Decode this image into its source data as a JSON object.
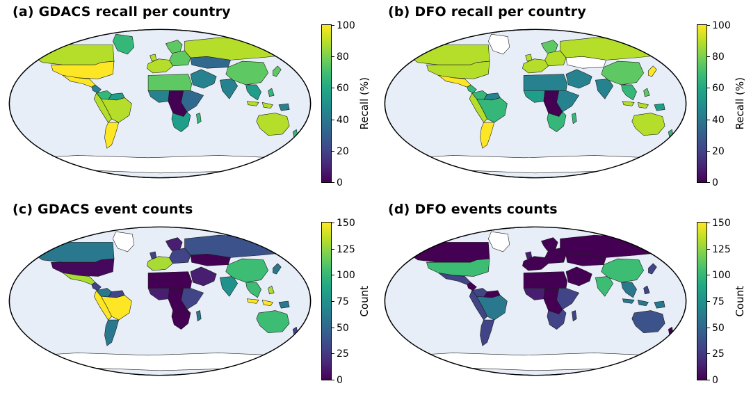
{
  "figure": {
    "panels": {
      "a": {
        "title": "(a)  GDACS recall per country",
        "colorbar": {
          "label": "Recall (%)",
          "min": 0,
          "max": 100,
          "ticks": [
            0,
            20,
            40,
            60,
            80,
            100
          ]
        },
        "region_colors": {
          "greenland": "#35b779",
          "canada": "#b5de2b",
          "usa": "#fde725",
          "mexico": "#fde725",
          "central_america": "#26828e",
          "colombia": "#35b779",
          "venezuela": "#1f9e89",
          "peru": "#b5de2b",
          "brazil": "#b5de2b",
          "argentina": "#fde725",
          "uk": "#b5de2b",
          "scandinavia": "#5ec962",
          "western_europe": "#b5de2b",
          "eastern_europe": "#5ec962",
          "russia": "#b5de2b",
          "central_asia": "#31688e",
          "middle_east": "#26828e",
          "north_africa": "#5ec962",
          "west_africa": "#26828e",
          "central_africa": "#440154",
          "east_africa": "#31688e",
          "southern_africa": "#1f9e89",
          "madagascar": "#35b779",
          "india": "#26828e",
          "china": "#5ec962",
          "se_asia": "#1f9e89",
          "indonesia": "#b5de2b",
          "philippines": "#35b779",
          "new_guinea": "#26828e",
          "japan": "#5ec962",
          "australia": "#b5de2b",
          "new_zealand": "#35b779"
        }
      },
      "b": {
        "title": "(b)  DFO recall per country",
        "colorbar": {
          "label": "Recall (%)",
          "min": 0,
          "max": 100,
          "ticks": [
            0,
            20,
            40,
            60,
            80,
            100
          ]
        },
        "region_colors": {
          "greenland": "#ffffff",
          "canada": "#b5de2b",
          "usa": "#b5de2b",
          "mexico": "#fde725",
          "central_america": "#35b779",
          "colombia": "#35b779",
          "venezuela": "#26828e",
          "peru": "#b5de2b",
          "brazil": "#35b779",
          "argentina": "#fde725",
          "uk": "#b5de2b",
          "scandinavia": "#5ec962",
          "western_europe": "#b5de2b",
          "eastern_europe": "#b5de2b",
          "russia": "#b5de2b",
          "central_asia": "#ffffff",
          "middle_east": "#26828e",
          "north_africa": "#26828e",
          "west_africa": "#1f9e89",
          "central_africa": "#440154",
          "east_africa": "#26828e",
          "southern_africa": "#35b779",
          "madagascar": "#35b779",
          "india": "#26828e",
          "china": "#5ec962",
          "se_asia": "#35b779",
          "indonesia": "#b5de2b",
          "philippines": "#5ec962",
          "new_guinea": "#1f9e89",
          "japan": "#fde725",
          "australia": "#b5de2b",
          "new_zealand": "#35b779"
        }
      },
      "c": {
        "title": "(c)  GDACS event counts",
        "colorbar": {
          "label": "Count",
          "min": 0,
          "max": 150,
          "ticks": [
            0,
            25,
            50,
            75,
            100,
            125,
            150
          ]
        },
        "region_colors": {
          "greenland": "#ffffff",
          "canada": "#2a788e",
          "usa": "#46085c",
          "mexico": "#a8db34",
          "central_america": "#414487",
          "colombia": "#2a788e",
          "venezuela": "#414487",
          "peru": "#fde725",
          "brazil": "#fde725",
          "argentina": "#2a788e",
          "uk": "#414487",
          "scandinavia": "#481f70",
          "western_europe": "#a8db34",
          "eastern_europe": "#414487",
          "russia": "#3b528b",
          "central_asia": "#440154",
          "middle_east": "#481f70",
          "north_africa": "#440154",
          "west_africa": "#481f70",
          "central_africa": "#440154",
          "east_africa": "#414487",
          "southern_africa": "#440154",
          "madagascar": "#2a788e",
          "india": "#21918c",
          "china": "#3dbc74",
          "se_asia": "#3dbc74",
          "indonesia": "#fde725",
          "philippines": "#a8db34",
          "new_guinea": "#2a788e",
          "japan": "#2a788e",
          "australia": "#3dbc74",
          "new_zealand": "#414487"
        }
      },
      "d": {
        "title": "(d)  DFO events counts",
        "colorbar": {
          "label": "Count",
          "min": 0,
          "max": 150,
          "ticks": [
            0,
            25,
            50,
            75,
            100,
            125,
            150
          ]
        },
        "region_colors": {
          "greenland": "#ffffff",
          "canada": "#440154",
          "usa": "#3dbc74",
          "mexico": "#414487",
          "central_america": "#440154",
          "colombia": "#414487",
          "venezuela": "#440154",
          "peru": "#414487",
          "brazil": "#2a788e",
          "argentina": "#414487",
          "uk": "#481f70",
          "scandinavia": "#440154",
          "western_europe": "#440154",
          "eastern_europe": "#440154",
          "russia": "#440154",
          "central_asia": "#440154",
          "middle_east": "#440154",
          "north_africa": "#440154",
          "west_africa": "#481f70",
          "central_africa": "#440154",
          "east_africa": "#414487",
          "southern_africa": "#414487",
          "madagascar": "#414487",
          "india": "#3dbc74",
          "china": "#3dbc74",
          "se_asia": "#2a788e",
          "indonesia": "#2a788e",
          "philippines": "#414487",
          "new_guinea": "#2a788e",
          "japan": "#414487",
          "australia": "#3b528b",
          "new_zealand": "#440154"
        }
      }
    }
  },
  "chart_data": [
    {
      "type": "heatmap",
      "subtype": "choropleth-world-map",
      "title": "(a) GDACS recall per country",
      "colorbar_label": "Recall (%)",
      "range": [
        0,
        100
      ],
      "ticks": [
        0,
        20,
        40,
        60,
        80,
        100
      ],
      "colormap": "viridis",
      "no_data_color": "#ffffff",
      "values": {
        "usa": 100,
        "canada": 85,
        "greenland": 65,
        "mexico": 100,
        "central_america": 45,
        "colombia": 65,
        "venezuela": 55,
        "peru": 85,
        "brazil": 85,
        "argentina": 100,
        "uk": 85,
        "scandinavia": 75,
        "western_europe": 85,
        "eastern_europe": 75,
        "russia": 85,
        "central_asia": 30,
        "middle_east": 45,
        "north_africa": 75,
        "west_africa": 45,
        "central_africa": 5,
        "east_africa": 30,
        "southern_africa": 55,
        "madagascar": 65,
        "india": 45,
        "china": 75,
        "se_asia": 55,
        "indonesia": 85,
        "philippines": 65,
        "new_guinea": 45,
        "japan": 75,
        "australia": 85,
        "new_zealand": 65
      }
    },
    {
      "type": "heatmap",
      "subtype": "choropleth-world-map",
      "title": "(b) DFO recall per country",
      "colorbar_label": "Recall (%)",
      "range": [
        0,
        100
      ],
      "ticks": [
        0,
        20,
        40,
        60,
        80,
        100
      ],
      "colormap": "viridis",
      "no_data_color": "#ffffff",
      "values": {
        "usa": 85,
        "canada": 85,
        "greenland": null,
        "mexico": 100,
        "central_america": 65,
        "colombia": 65,
        "venezuela": 45,
        "peru": 85,
        "brazil": 65,
        "argentina": 100,
        "uk": 85,
        "scandinavia": 75,
        "western_europe": 85,
        "eastern_europe": 85,
        "russia": 85,
        "central_asia": null,
        "middle_east": 45,
        "north_africa": 45,
        "west_africa": 55,
        "central_africa": 5,
        "east_africa": 45,
        "southern_africa": 65,
        "madagascar": 65,
        "india": 45,
        "china": 75,
        "se_asia": 65,
        "indonesia": 85,
        "philippines": 75,
        "new_guinea": 55,
        "japan": 100,
        "australia": 85,
        "new_zealand": 65
      }
    },
    {
      "type": "heatmap",
      "subtype": "choropleth-world-map",
      "title": "(c) GDACS event counts",
      "colorbar_label": "Count",
      "range": [
        0,
        150
      ],
      "ticks": [
        0,
        25,
        50,
        75,
        100,
        125,
        150
      ],
      "colormap": "viridis",
      "no_data_color": "#ffffff",
      "values": {
        "usa": 8,
        "canada": 60,
        "greenland": null,
        "mexico": 120,
        "central_america": 30,
        "colombia": 60,
        "venezuela": 30,
        "peru": 150,
        "brazil": 150,
        "argentina": 60,
        "uk": 30,
        "scandinavia": 12,
        "western_europe": 120,
        "eastern_europe": 30,
        "russia": 35,
        "central_asia": 5,
        "middle_east": 12,
        "north_africa": 5,
        "west_africa": 12,
        "central_africa": 5,
        "east_africa": 30,
        "southern_africa": 5,
        "madagascar": 60,
        "india": 75,
        "china": 100,
        "se_asia": 100,
        "indonesia": 150,
        "philippines": 120,
        "new_guinea": 60,
        "japan": 60,
        "australia": 100,
        "new_zealand": 30
      }
    },
    {
      "type": "heatmap",
      "subtype": "choropleth-world-map",
      "title": "(d) DFO events counts",
      "colorbar_label": "Count",
      "range": [
        0,
        150
      ],
      "ticks": [
        0,
        25,
        50,
        75,
        100,
        125,
        150
      ],
      "colormap": "viridis",
      "no_data_color": "#ffffff",
      "values": {
        "usa": 100,
        "canada": 5,
        "greenland": null,
        "mexico": 30,
        "central_america": 5,
        "colombia": 30,
        "venezuela": 5,
        "peru": 30,
        "brazil": 60,
        "argentina": 30,
        "uk": 12,
        "scandinavia": 5,
        "western_europe": 5,
        "eastern_europe": 5,
        "russia": 5,
        "central_asia": 5,
        "middle_east": 5,
        "north_africa": 5,
        "west_africa": 12,
        "central_africa": 5,
        "east_africa": 30,
        "southern_africa": 30,
        "madagascar": 30,
        "india": 100,
        "china": 100,
        "se_asia": 60,
        "indonesia": 60,
        "philippines": 30,
        "new_guinea": 60,
        "japan": 30,
        "australia": 40,
        "new_zealand": 5
      }
    }
  ]
}
